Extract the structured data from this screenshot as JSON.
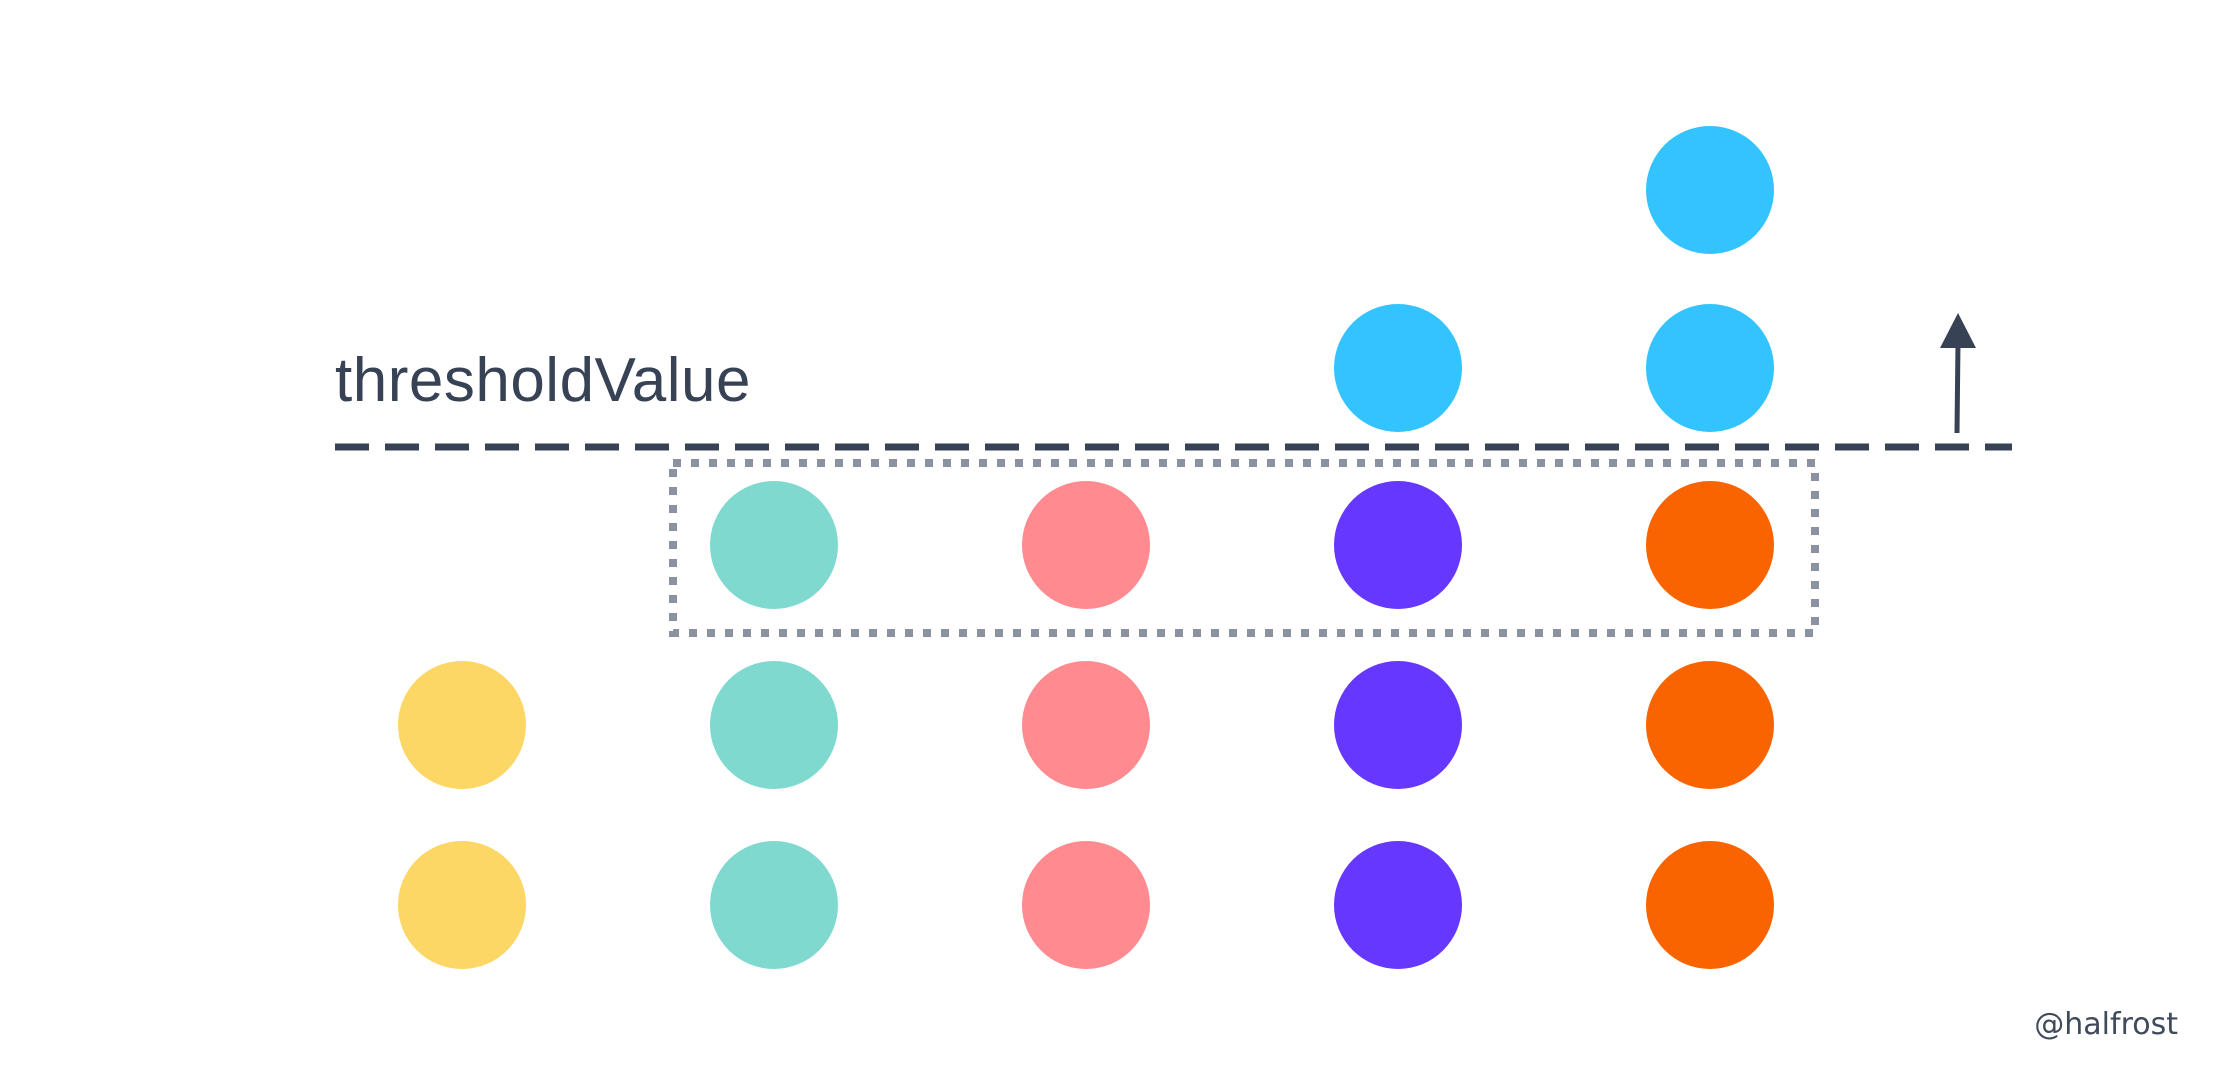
{
  "diagram": {
    "threshold_label": "thresholdValue",
    "watermark": "@halfrost",
    "colors": {
      "line": "#374355",
      "selection_box": "#8b93a3",
      "yellow": "#fcd765",
      "teal": "#7fd9cf",
      "pink": "#ff8a90",
      "purple": "#6637ff",
      "orange": "#fa6400",
      "blue": "#33c4ff"
    },
    "columns": [
      {
        "name": "column-1",
        "color": "yellow",
        "below_threshold": 2,
        "above_threshold": 0
      },
      {
        "name": "column-2",
        "color": "teal",
        "below_threshold": 3,
        "above_threshold": 0
      },
      {
        "name": "column-3",
        "color": "pink",
        "below_threshold": 3,
        "above_threshold": 0
      },
      {
        "name": "column-4",
        "color": "purple",
        "below_threshold": 3,
        "above_threshold": 1
      },
      {
        "name": "column-5",
        "color": "orange",
        "below_threshold": 3,
        "above_threshold": 2
      }
    ],
    "above_threshold_color": "blue",
    "selected_row": "top row below threshold",
    "arrow_direction": "up"
  }
}
